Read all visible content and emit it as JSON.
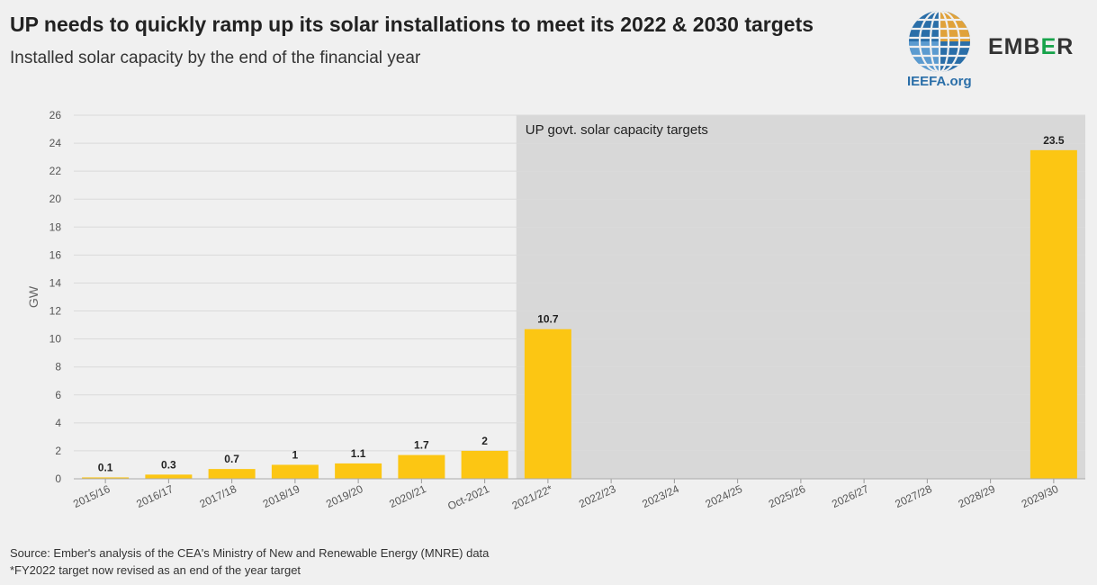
{
  "header": {
    "title": "UP needs to quickly ramp up its solar installations to meet its 2022 & 2030 targets",
    "subtitle": "Installed solar capacity by the end of the financial year"
  },
  "logos": {
    "ieefa": "IEEFA.org",
    "ember_prefix": "EMB",
    "ember_mid": "E",
    "ember_suffix": "R"
  },
  "footer": {
    "source": "Source: Ember's analysis of the CEA's Ministry of New and Renewable Energy (MNRE) data",
    "note": "*FY2022 target now revised as an end of the year target"
  },
  "colors": {
    "bar": "#fcc613",
    "target_region": "#d8d8d8",
    "grid": "#dadada",
    "background": "#f0f0f0"
  },
  "chart_data": {
    "type": "bar",
    "title": "UP needs to quickly ramp up its solar installations to meet its 2022 & 2030 targets",
    "subtitle": "Installed solar capacity by the end of the financial year",
    "xlabel": "",
    "ylabel": "GW",
    "ylim": [
      0,
      26
    ],
    "yticks": [
      0,
      2,
      4,
      6,
      8,
      10,
      12,
      14,
      16,
      18,
      20,
      22,
      24,
      26
    ],
    "grid": true,
    "categories": [
      "2015/16",
      "2016/17",
      "2017/18",
      "2018/19",
      "2019/20",
      "2020/21",
      "Oct-2021",
      "2021/22*",
      "2022/23",
      "2023/24",
      "2024/25",
      "2025/26",
      "2026/27",
      "2027/28",
      "2028/29",
      "2029/30"
    ],
    "values": [
      0.1,
      0.3,
      0.7,
      1,
      1.1,
      1.7,
      2,
      10.7,
      null,
      null,
      null,
      null,
      null,
      null,
      null,
      23.5
    ],
    "data_labels": [
      "0.1",
      "0.3",
      "0.7",
      "1",
      "1.1",
      "1.7",
      "2",
      "10.7",
      "",
      "",
      "",
      "",
      "",
      "",
      "",
      "23.5"
    ],
    "annotation": {
      "text": "UP govt. solar capacity targets",
      "from_category": "2021/22*",
      "to_category": "2029/30"
    }
  }
}
